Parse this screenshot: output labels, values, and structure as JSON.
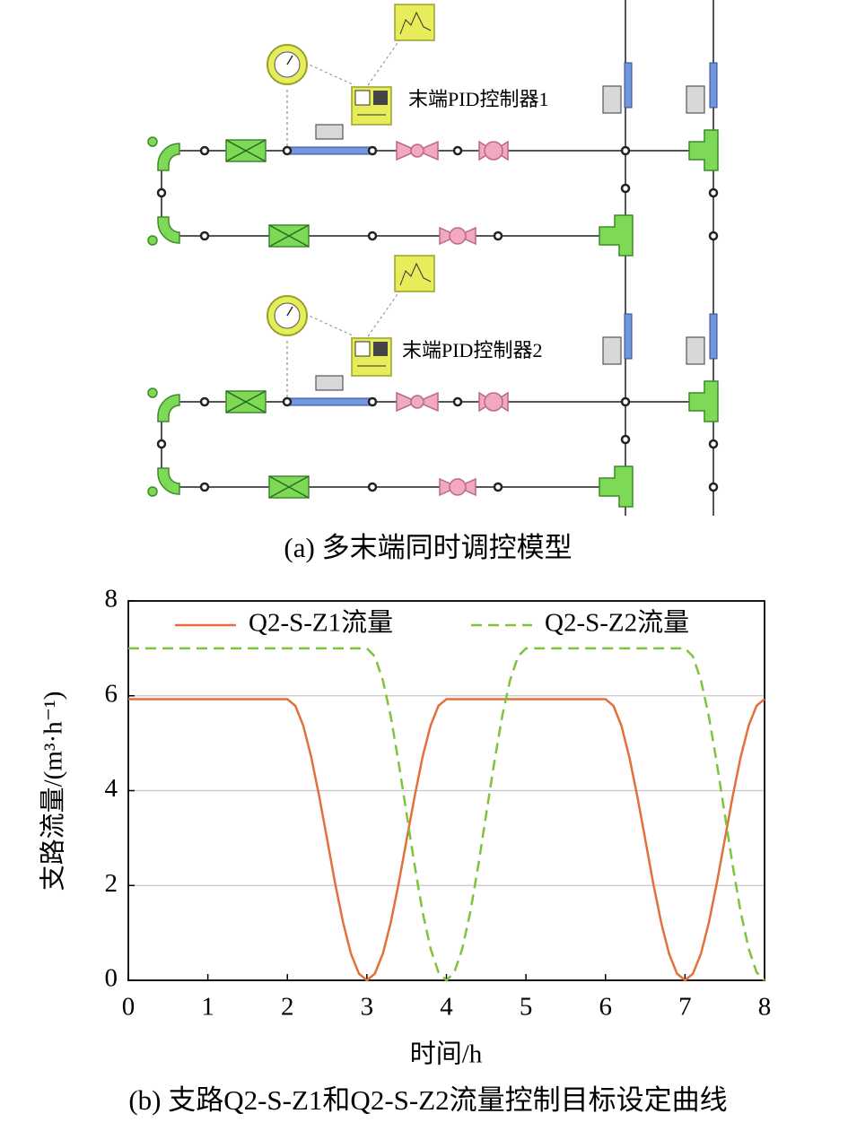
{
  "diagram": {
    "labels": [
      "末端PID控制器1",
      "末端PID控制器2"
    ],
    "caption": "(a) 多末端同时调控模型"
  },
  "chart_data": {
    "type": "line",
    "caption": "(b) 支路Q2-S-Z1和Q2-S-Z2流量控制目标设定曲线",
    "x_label": "时间/h",
    "y_label": "支路流量/(m³·h⁻¹)",
    "xlim": [
      0,
      8
    ],
    "xticks": [
      0,
      1,
      2,
      3,
      4,
      5,
      6,
      7,
      8
    ],
    "ylim": [
      0,
      8
    ],
    "yticks": [
      0,
      2,
      4,
      6,
      8
    ],
    "grid": true,
    "legend": "top",
    "series": [
      {
        "name": "Q2-S-Z1流量",
        "color": "#e2703a",
        "dash": false,
        "x": [
          0,
          2.0,
          2.1,
          2.2,
          2.3,
          2.4,
          2.5,
          2.6,
          2.7,
          2.8,
          2.9,
          3.0,
          3.1,
          3.2,
          3.3,
          3.4,
          3.5,
          3.6,
          3.7,
          3.8,
          3.9,
          4.0,
          6.0,
          6.1,
          6.2,
          6.3,
          6.4,
          6.5,
          6.6,
          6.7,
          6.8,
          6.9,
          7.0,
          7.1,
          7.2,
          7.3,
          7.4,
          7.5,
          7.6,
          7.7,
          7.8,
          7.9,
          8.0
        ],
        "values": [
          5.93,
          5.93,
          5.79,
          5.37,
          4.71,
          3.88,
          2.97,
          2.05,
          1.22,
          0.56,
          0.14,
          0,
          0.14,
          0.56,
          1.22,
          2.05,
          2.97,
          3.88,
          4.71,
          5.37,
          5.79,
          5.93,
          5.93,
          5.79,
          5.37,
          4.71,
          3.88,
          2.97,
          2.05,
          1.22,
          0.56,
          0.14,
          0,
          0.14,
          0.56,
          1.22,
          2.05,
          2.97,
          3.88,
          4.71,
          5.37,
          5.79,
          5.93
        ]
      },
      {
        "name": "Q2-S-Z2流量",
        "color": "#7cc43a",
        "dash": true,
        "x": [
          0,
          3.0,
          3.1,
          3.2,
          3.3,
          3.4,
          3.5,
          3.6,
          3.7,
          3.8,
          3.9,
          4.0,
          4.1,
          4.2,
          4.3,
          4.4,
          4.5,
          4.6,
          4.7,
          4.8,
          4.9,
          5.0,
          7.0,
          7.1,
          7.2,
          7.3,
          7.4,
          7.5,
          7.6,
          7.7,
          7.8,
          7.9,
          8.0
        ],
        "values": [
          7,
          7,
          6.83,
          6.33,
          5.56,
          4.58,
          3.5,
          2.42,
          1.44,
          0.67,
          0.17,
          0,
          0.17,
          0.67,
          1.44,
          2.42,
          3.5,
          4.58,
          5.56,
          6.33,
          6.83,
          7,
          7,
          6.83,
          6.33,
          5.56,
          4.58,
          3.5,
          2.42,
          1.44,
          0.67,
          0.17,
          0
        ]
      }
    ]
  }
}
